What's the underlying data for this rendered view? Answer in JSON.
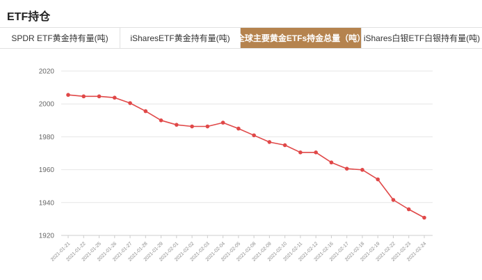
{
  "header": {
    "title": "ETF持仓"
  },
  "tabs": [
    {
      "label": "SPDR ETF黄金持有量(吨)",
      "active": false
    },
    {
      "label": "iSharesETF黄金持有量(吨)",
      "active": false
    },
    {
      "label": "全球主要黄金ETFs持金总量（吨）",
      "active": true
    },
    {
      "label": "iShares白银ETF白银持有量(吨)",
      "active": false
    }
  ],
  "colors": {
    "accent_tab": "#b5834e",
    "line": "#e04848",
    "grid": "#e6e6e6"
  },
  "chart_data": {
    "type": "line",
    "categories": [
      "2021-01-21",
      "2021-01-22",
      "2021-01-25",
      "2021-01-26",
      "2021-01-27",
      "2021-01-28",
      "2021-01-29",
      "2021-02-01",
      "2021-02-02",
      "2021-02-03",
      "2021-02-04",
      "2021-02-05",
      "2021-02-08",
      "2021-02-09",
      "2021-02-10",
      "2021-02-11",
      "2021-02-12",
      "2021-02-16",
      "2021-02-17",
      "2021-02-18",
      "2021-02-19",
      "2021-02-22",
      "2021-02-23",
      "2021-02-24"
    ],
    "series": [
      {
        "values": [
          2005.5,
          2004.6,
          2004.6,
          2003.8,
          2000.5,
          1995.6,
          1990.0,
          1987.3,
          1986.3,
          1986.3,
          1988.6,
          1985.0,
          1980.9,
          1976.8,
          1974.9,
          1970.5,
          1970.5,
          1964.4,
          1960.6,
          1959.9,
          1954.1,
          1941.6,
          1935.9,
          1930.8
        ]
      }
    ],
    "title": "",
    "xlabel": "",
    "ylabel": "",
    "ylim": [
      1920,
      2020
    ],
    "yticks": [
      1920,
      1940,
      1960,
      1980,
      2000,
      2020
    ],
    "grid": true,
    "legend": "none"
  }
}
